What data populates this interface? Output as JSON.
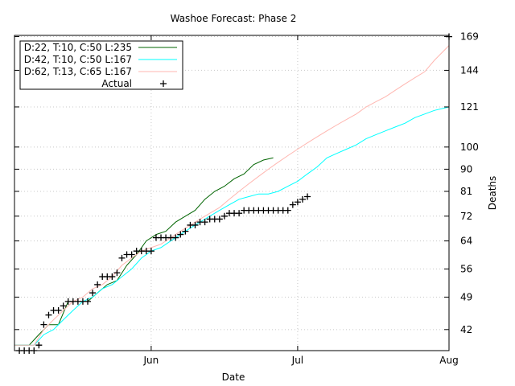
{
  "chart_data": {
    "type": "line",
    "title": "Washoe Forecast: Phase 2",
    "xlabel": "Date",
    "ylabel": "Deaths",
    "x_range": [
      "2020-05-04",
      "2020-08-01"
    ],
    "x_ticks": [
      {
        "date": "2020-06-01",
        "label": "Jun"
      },
      {
        "date": "2020-07-01",
        "label": "Jul"
      },
      {
        "date": "2020-08-01",
        "label": "Aug"
      }
    ],
    "y_scale": "log",
    "y_range": [
      38,
      170
    ],
    "y_ticks": [
      42,
      49,
      56,
      64,
      72,
      81,
      90,
      100,
      121,
      144,
      169
    ],
    "grid": true,
    "legend_position": "top-left",
    "series": [
      {
        "name": "D:22, T:10, C:50 L:235",
        "color": "#006400",
        "style": "line",
        "points": [
          [
            "2020-05-04",
            39
          ],
          [
            "2020-05-07",
            39
          ],
          [
            "2020-05-09",
            41
          ],
          [
            "2020-05-11",
            43
          ],
          [
            "2020-05-13",
            43
          ],
          [
            "2020-05-15",
            48
          ],
          [
            "2020-05-17",
            48
          ],
          [
            "2020-05-19",
            48
          ],
          [
            "2020-05-21",
            50
          ],
          [
            "2020-05-23",
            52
          ],
          [
            "2020-05-25",
            53
          ],
          [
            "2020-05-27",
            57
          ],
          [
            "2020-05-29",
            60
          ],
          [
            "2020-05-31",
            64
          ],
          [
            "2020-06-02",
            66
          ],
          [
            "2020-06-04",
            67
          ],
          [
            "2020-06-06",
            70
          ],
          [
            "2020-06-08",
            72
          ],
          [
            "2020-06-10",
            74
          ],
          [
            "2020-06-12",
            78
          ],
          [
            "2020-06-14",
            81
          ],
          [
            "2020-06-16",
            83
          ],
          [
            "2020-06-18",
            86
          ],
          [
            "2020-06-20",
            88
          ],
          [
            "2020-06-22",
            92
          ],
          [
            "2020-06-24",
            94
          ],
          [
            "2020-06-26",
            95
          ]
        ]
      },
      {
        "name": "D:42, T:10, C:50 L:167",
        "color": "#00ffff",
        "style": "line",
        "points": [
          [
            "2020-05-04",
            39
          ],
          [
            "2020-05-08",
            39
          ],
          [
            "2020-05-10",
            41
          ],
          [
            "2020-05-12",
            42
          ],
          [
            "2020-05-14",
            44
          ],
          [
            "2020-05-16",
            46
          ],
          [
            "2020-05-18",
            48
          ],
          [
            "2020-05-20",
            49
          ],
          [
            "2020-05-22",
            51
          ],
          [
            "2020-05-24",
            52
          ],
          [
            "2020-05-26",
            54
          ],
          [
            "2020-05-28",
            56
          ],
          [
            "2020-05-30",
            59
          ],
          [
            "2020-06-01",
            61
          ],
          [
            "2020-06-03",
            62
          ],
          [
            "2020-06-05",
            64
          ],
          [
            "2020-06-07",
            66
          ],
          [
            "2020-06-09",
            68
          ],
          [
            "2020-06-11",
            70
          ],
          [
            "2020-06-13",
            72
          ],
          [
            "2020-06-15",
            74
          ],
          [
            "2020-06-17",
            76
          ],
          [
            "2020-06-19",
            78
          ],
          [
            "2020-06-21",
            79
          ],
          [
            "2020-06-23",
            80
          ],
          [
            "2020-06-25",
            80
          ],
          [
            "2020-06-27",
            81
          ],
          [
            "2020-06-29",
            83
          ],
          [
            "2020-07-01",
            85
          ],
          [
            "2020-07-03",
            88
          ],
          [
            "2020-07-05",
            91
          ],
          [
            "2020-07-07",
            95
          ],
          [
            "2020-07-09",
            97
          ],
          [
            "2020-07-11",
            99
          ],
          [
            "2020-07-13",
            101
          ],
          [
            "2020-07-15",
            104
          ],
          [
            "2020-07-17",
            106
          ],
          [
            "2020-07-19",
            108
          ],
          [
            "2020-07-21",
            110
          ],
          [
            "2020-07-23",
            112
          ],
          [
            "2020-07-25",
            115
          ],
          [
            "2020-07-27",
            117
          ],
          [
            "2020-07-29",
            119
          ],
          [
            "2020-08-01",
            121
          ]
        ]
      },
      {
        "name": "D:62, T:13, C:65 L:167",
        "color": "#ffb6b0",
        "style": "line",
        "points": [
          [
            "2020-05-04",
            39
          ],
          [
            "2020-05-08",
            39
          ],
          [
            "2020-05-10",
            42
          ],
          [
            "2020-05-12",
            44
          ],
          [
            "2020-05-14",
            46
          ],
          [
            "2020-05-16",
            48
          ],
          [
            "2020-05-18",
            49
          ],
          [
            "2020-05-20",
            51
          ],
          [
            "2020-05-22",
            52
          ],
          [
            "2020-05-24",
            54
          ],
          [
            "2020-05-26",
            57
          ],
          [
            "2020-05-28",
            59
          ],
          [
            "2020-05-30",
            61
          ],
          [
            "2020-06-01",
            62
          ],
          [
            "2020-06-03",
            63
          ],
          [
            "2020-06-05",
            65
          ],
          [
            "2020-06-07",
            67
          ],
          [
            "2020-06-09",
            69
          ],
          [
            "2020-06-11",
            71
          ],
          [
            "2020-06-13",
            73
          ],
          [
            "2020-06-15",
            75
          ],
          [
            "2020-06-17",
            78
          ],
          [
            "2020-06-19",
            81
          ],
          [
            "2020-06-21",
            84
          ],
          [
            "2020-06-23",
            87
          ],
          [
            "2020-06-25",
            90
          ],
          [
            "2020-06-27",
            93
          ],
          [
            "2020-06-29",
            96
          ],
          [
            "2020-07-01",
            99
          ],
          [
            "2020-07-03",
            102
          ],
          [
            "2020-07-05",
            105
          ],
          [
            "2020-07-07",
            108
          ],
          [
            "2020-07-09",
            111
          ],
          [
            "2020-07-11",
            114
          ],
          [
            "2020-07-13",
            117
          ],
          [
            "2020-07-15",
            121
          ],
          [
            "2020-07-17",
            124
          ],
          [
            "2020-07-19",
            127
          ],
          [
            "2020-07-21",
            131
          ],
          [
            "2020-07-23",
            135
          ],
          [
            "2020-07-25",
            139
          ],
          [
            "2020-07-27",
            143
          ],
          [
            "2020-07-29",
            151
          ],
          [
            "2020-08-01",
            162
          ]
        ]
      },
      {
        "name": "Actual",
        "color": "#000000",
        "style": "markers",
        "points": [
          [
            "2020-05-05",
            38
          ],
          [
            "2020-05-06",
            38
          ],
          [
            "2020-05-07",
            38
          ],
          [
            "2020-05-08",
            38
          ],
          [
            "2020-05-09",
            39
          ],
          [
            "2020-05-10",
            43
          ],
          [
            "2020-05-11",
            45
          ],
          [
            "2020-05-12",
            46
          ],
          [
            "2020-05-13",
            46
          ],
          [
            "2020-05-14",
            47
          ],
          [
            "2020-05-15",
            48
          ],
          [
            "2020-05-16",
            48
          ],
          [
            "2020-05-17",
            48
          ],
          [
            "2020-05-18",
            48
          ],
          [
            "2020-05-19",
            48
          ],
          [
            "2020-05-20",
            50
          ],
          [
            "2020-05-21",
            52
          ],
          [
            "2020-05-22",
            54
          ],
          [
            "2020-05-23",
            54
          ],
          [
            "2020-05-24",
            54
          ],
          [
            "2020-05-25",
            55
          ],
          [
            "2020-05-26",
            59
          ],
          [
            "2020-05-27",
            60
          ],
          [
            "2020-05-28",
            60
          ],
          [
            "2020-05-29",
            61
          ],
          [
            "2020-05-30",
            61
          ],
          [
            "2020-05-31",
            61
          ],
          [
            "2020-06-01",
            61
          ],
          [
            "2020-06-02",
            65
          ],
          [
            "2020-06-03",
            65
          ],
          [
            "2020-06-04",
            65
          ],
          [
            "2020-06-05",
            65
          ],
          [
            "2020-06-06",
            65
          ],
          [
            "2020-06-07",
            66
          ],
          [
            "2020-06-08",
            67
          ],
          [
            "2020-06-09",
            69
          ],
          [
            "2020-06-10",
            69
          ],
          [
            "2020-06-11",
            70
          ],
          [
            "2020-06-12",
            70
          ],
          [
            "2020-06-13",
            71
          ],
          [
            "2020-06-14",
            71
          ],
          [
            "2020-06-15",
            71
          ],
          [
            "2020-06-16",
            72
          ],
          [
            "2020-06-17",
            73
          ],
          [
            "2020-06-18",
            73
          ],
          [
            "2020-06-19",
            73
          ],
          [
            "2020-06-20",
            74
          ],
          [
            "2020-06-21",
            74
          ],
          [
            "2020-06-22",
            74
          ],
          [
            "2020-06-23",
            74
          ],
          [
            "2020-06-24",
            74
          ],
          [
            "2020-06-25",
            74
          ],
          [
            "2020-06-26",
            74
          ],
          [
            "2020-06-27",
            74
          ],
          [
            "2020-06-28",
            74
          ],
          [
            "2020-06-29",
            74
          ],
          [
            "2020-06-30",
            76
          ],
          [
            "2020-07-01",
            77
          ],
          [
            "2020-07-02",
            78
          ],
          [
            "2020-07-03",
            79
          ],
          [
            "2020-08-01",
            169
          ]
        ]
      }
    ]
  }
}
